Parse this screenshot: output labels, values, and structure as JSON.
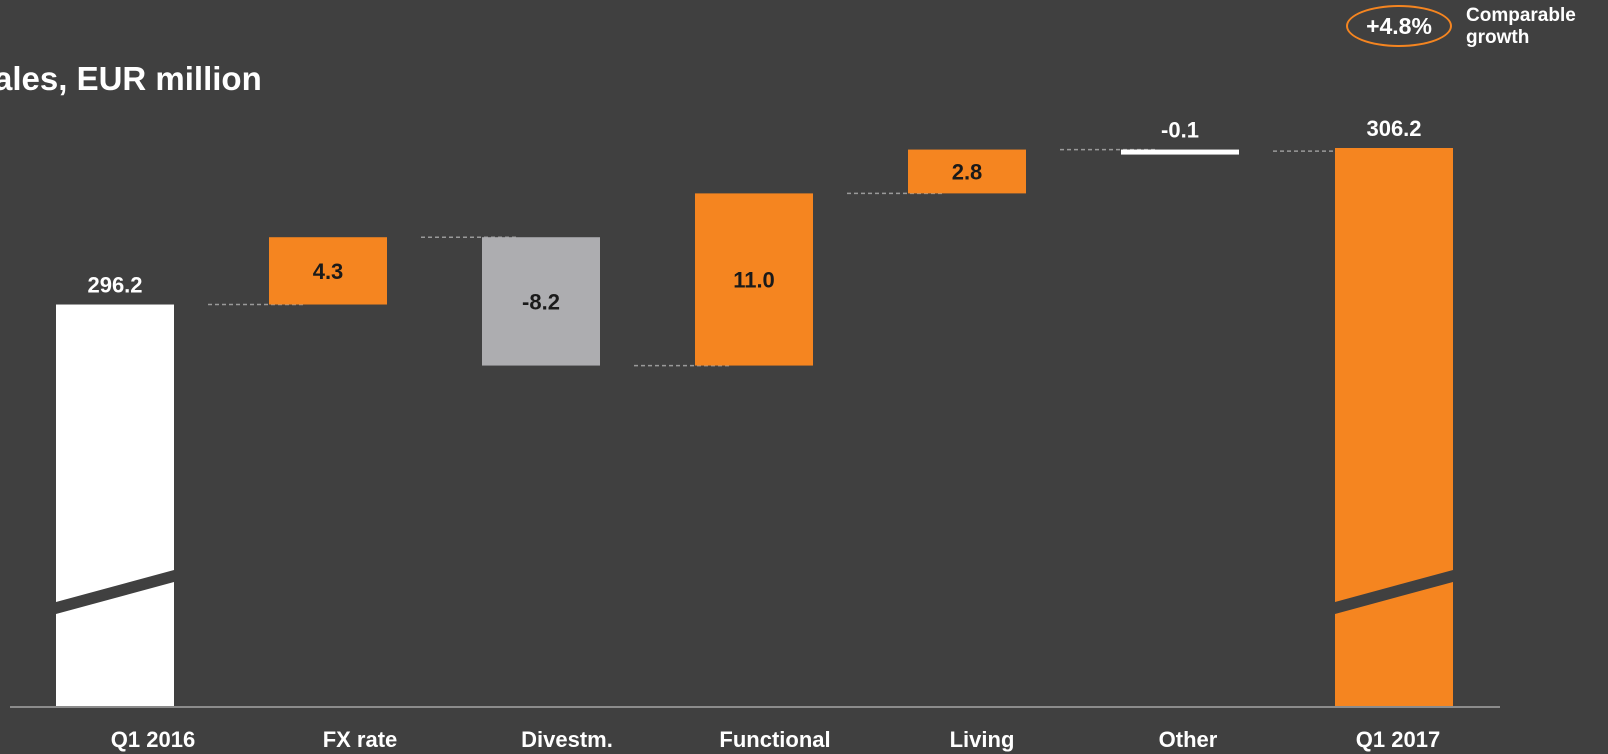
{
  "chart_data": {
    "type": "bar",
    "subtype": "waterfall",
    "title": "ales, EUR million",
    "categories": [
      "Q1 2016",
      "FX rate",
      "Divestm.",
      "Functional",
      "Living",
      "Other",
      "Q1 2017"
    ],
    "value_labels": [
      "296.2",
      "4.3",
      "-8.2",
      "11.0",
      "2.8",
      "-0.1",
      "306.2"
    ],
    "series": [
      {
        "values": [
          296.2,
          4.3,
          -8.2,
          11.0,
          2.8,
          -0.1,
          306.2
        ],
        "kinds": [
          "total",
          "delta",
          "delta",
          "delta",
          "delta",
          "delta",
          "total"
        ]
      }
    ],
    "axis_break": true,
    "colors": {
      "background": "#404040",
      "total_start": "#FFFFFF",
      "increase": "#F58520",
      "decrease": "#ADADB0",
      "other": "#FFFFFF",
      "total_end": "#F58520",
      "connector": "#9A9A9A",
      "axis": "#8C8C8C"
    },
    "badge": {
      "value": "+4.8%",
      "label_line1": "Comparable",
      "label_line2": "growth",
      "color": "#F58520"
    }
  }
}
